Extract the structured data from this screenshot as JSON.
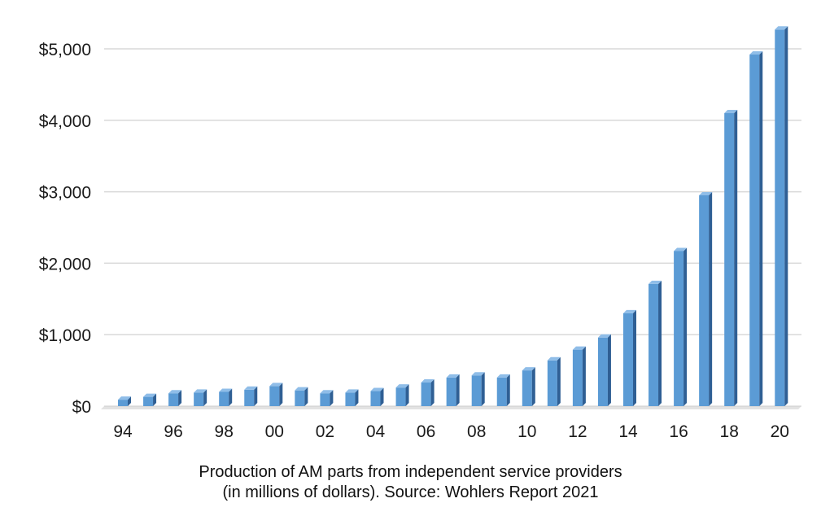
{
  "caption": {
    "line1": "Production of AM parts from independent service providers",
    "line2": "(in millions of dollars). Source: Wohlers Report 2021"
  },
  "chart_data": {
    "type": "bar",
    "title": "",
    "xlabel": "",
    "ylabel": "",
    "categories": [
      "94",
      "95",
      "96",
      "97",
      "98",
      "99",
      "00",
      "01",
      "02",
      "03",
      "04",
      "05",
      "06",
      "07",
      "08",
      "09",
      "10",
      "11",
      "12",
      "13",
      "14",
      "15",
      "16",
      "17",
      "18",
      "19",
      "20"
    ],
    "x_tick_labels": [
      "94",
      "",
      "96",
      "",
      "98",
      "",
      "00",
      "",
      "02",
      "",
      "04",
      "",
      "06",
      "",
      "08",
      "",
      "10",
      "",
      "12",
      "",
      "14",
      "",
      "16",
      "",
      "18",
      "",
      "20"
    ],
    "values": [
      90,
      130,
      180,
      190,
      200,
      230,
      280,
      220,
      180,
      190,
      210,
      260,
      330,
      400,
      430,
      400,
      500,
      640,
      790,
      960,
      1300,
      1710,
      2170,
      2950,
      4100,
      4920,
      5270
    ],
    "y_ticks": [
      0,
      1000,
      2000,
      3000,
      4000,
      5000
    ],
    "y_tick_labels": [
      "$0",
      "$1,000",
      "$2,000",
      "$3,000",
      "$4,000",
      "$5,000"
    ],
    "ylim": [
      0,
      5400
    ],
    "grid": true,
    "legend": "none",
    "bar_color": "#5b9bd5",
    "bar_side_color": "#2f5f94",
    "bar_top_color": "#8fbde8"
  }
}
